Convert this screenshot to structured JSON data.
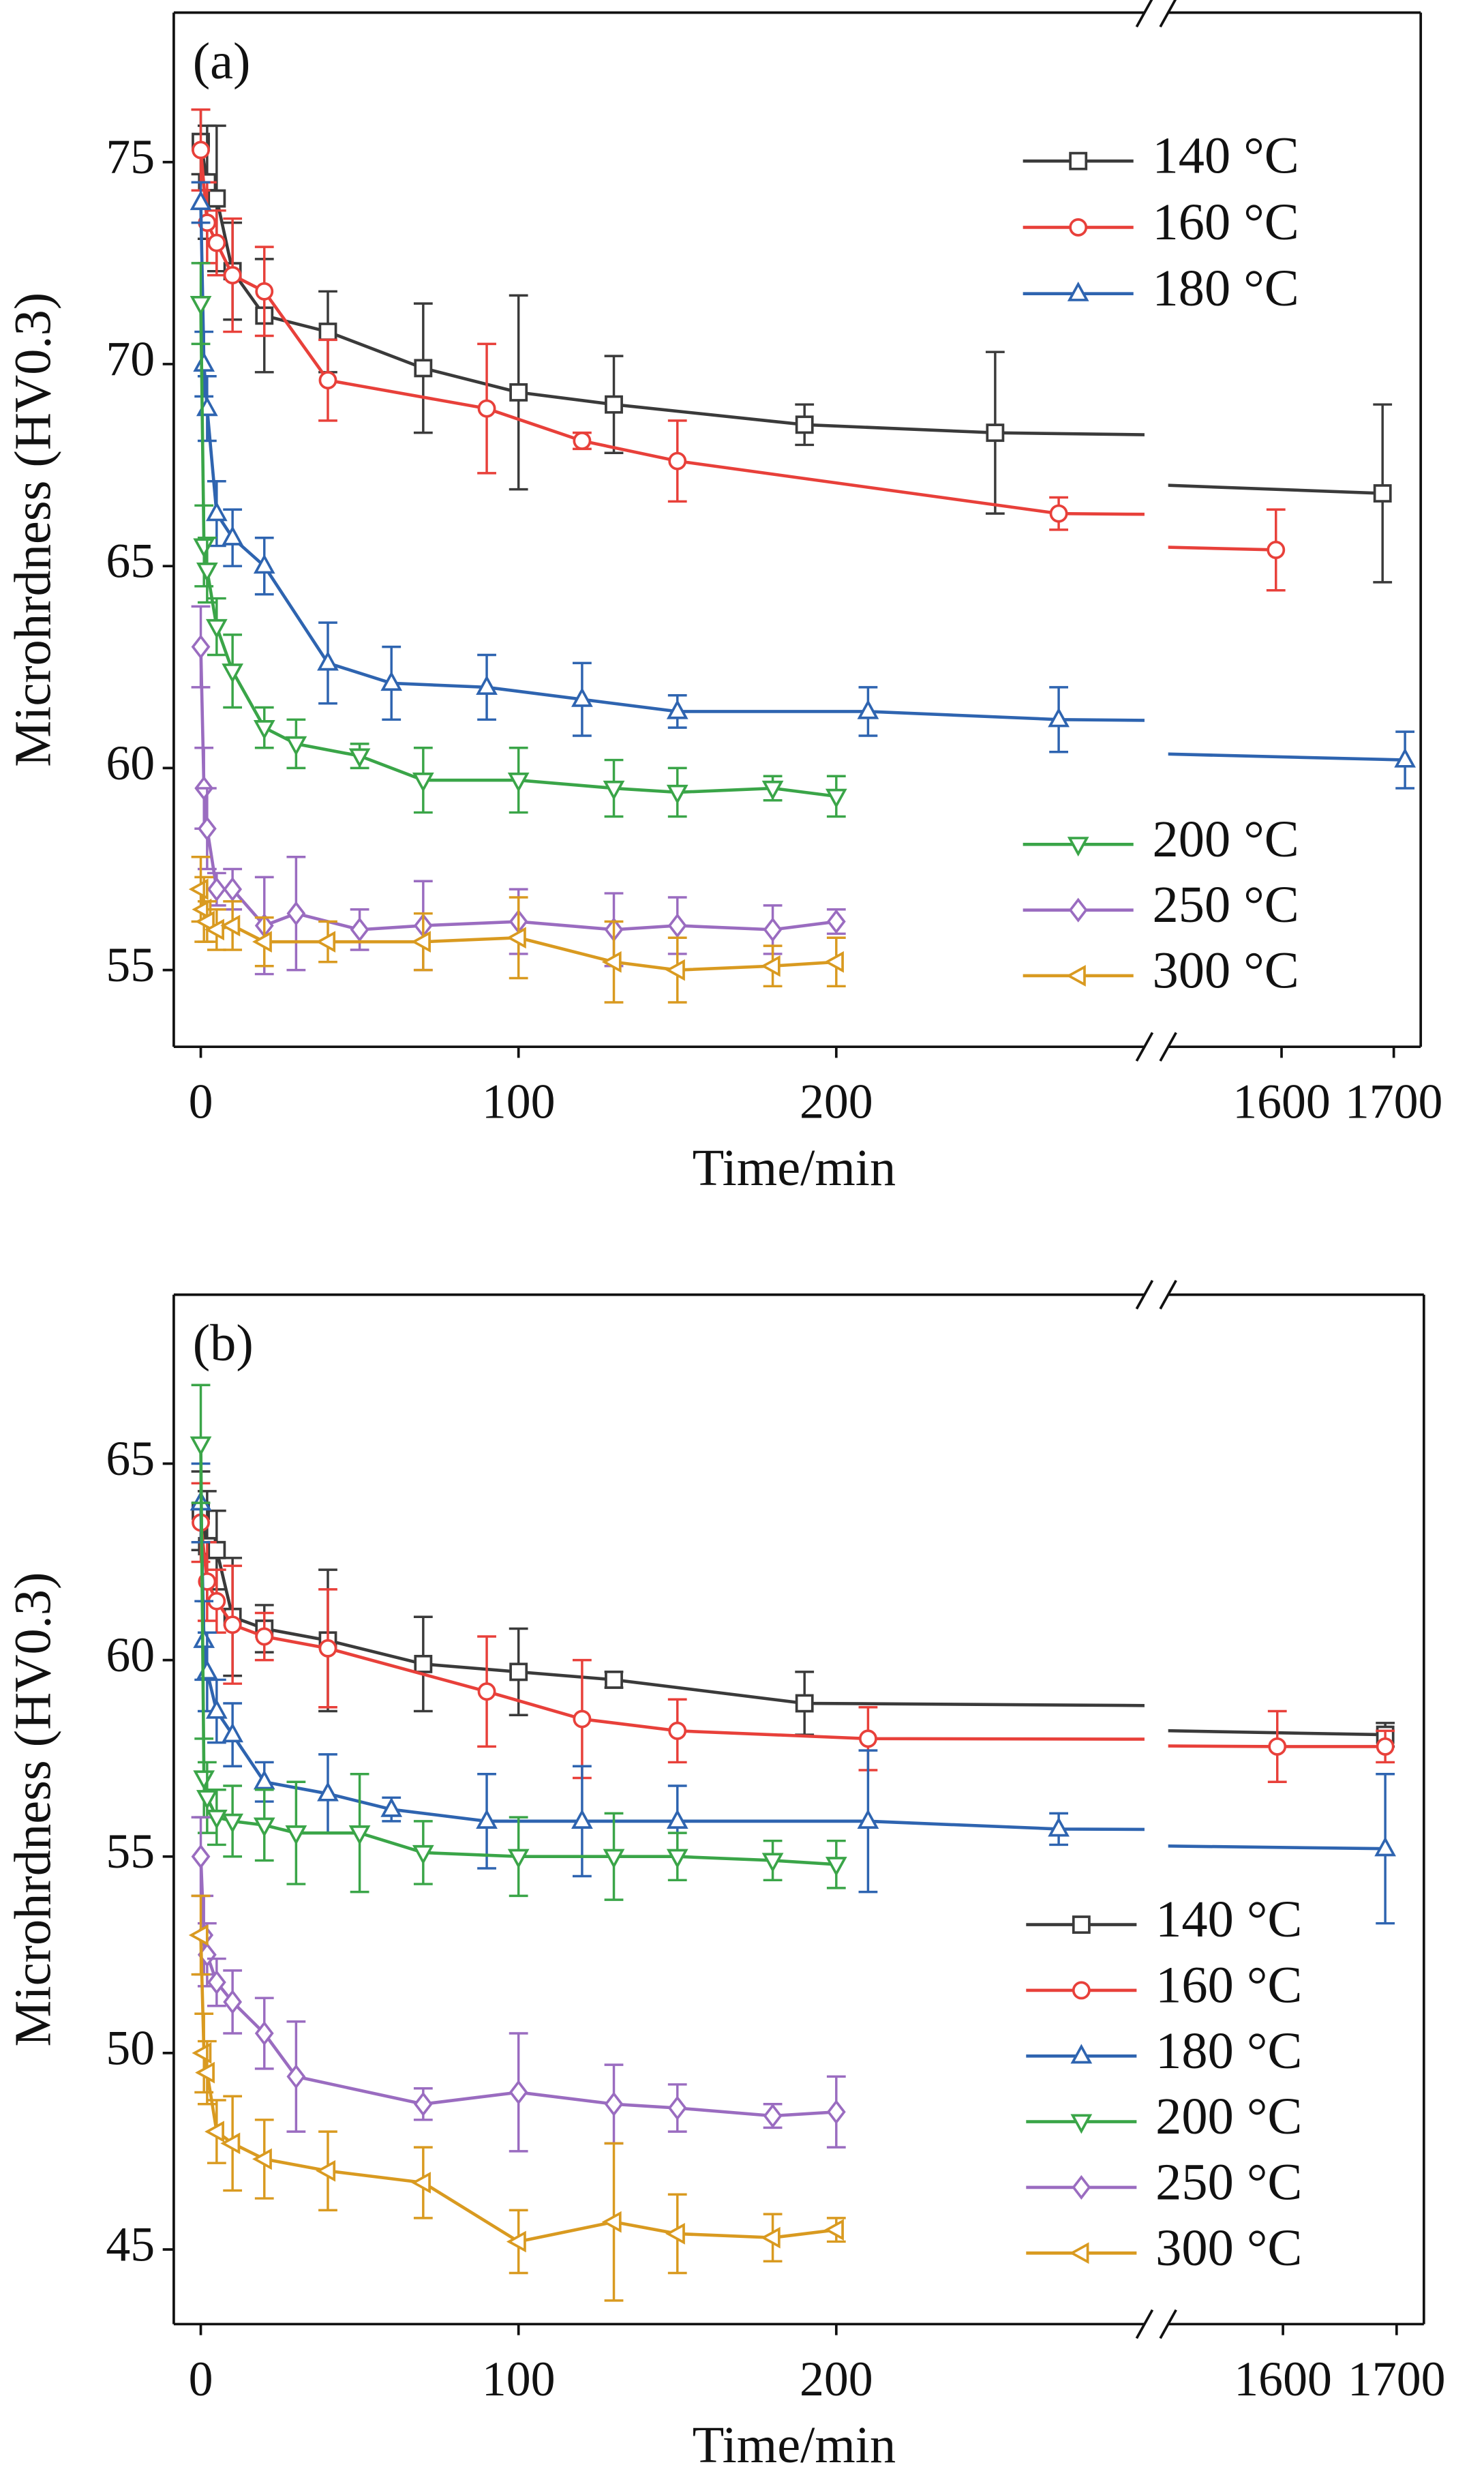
{
  "chart_data": [
    {
      "type": "line",
      "panel_label": "(a)",
      "xlabel": "Time/min",
      "ylabel": "Microhrdness (HV0.3)",
      "xlim": [
        -8.5,
        1724
      ],
      "x_break": [
        297,
        1499
      ],
      "ylim": [
        53.1,
        78.7
      ],
      "xticks": [
        0,
        100,
        200,
        1600,
        1700
      ],
      "yticks": [
        55,
        60,
        65,
        70,
        75
      ],
      "series": [
        {
          "name": "140 °C",
          "color": "#3a3a3a",
          "marker": "square",
          "legend": "upper right",
          "x": [
            0,
            2,
            5,
            10,
            20,
            40,
            70,
            100,
            130,
            190,
            250,
            1690
          ],
          "values": [
            75.5,
            74.5,
            74.1,
            72.3,
            71.2,
            70.8,
            69.9,
            69.3,
            69.0,
            68.5,
            68.3,
            66.8
          ],
          "errors": [
            0.8,
            1.4,
            1.8,
            1.2,
            1.4,
            1,
            1.6,
            2.4,
            1.2,
            0.5,
            2,
            2.2
          ]
        },
        {
          "name": "160 °C",
          "color": "#e8403a",
          "marker": "circle",
          "legend": "upper right",
          "x": [
            0,
            2,
            5,
            10,
            20,
            40,
            90,
            120,
            150,
            270,
            1595
          ],
          "values": [
            75.3,
            73.5,
            73.0,
            72.2,
            71.8,
            69.6,
            68.9,
            68.1,
            67.6,
            66.3,
            65.4
          ],
          "errors": [
            1,
            1,
            0.8,
            1.4,
            1.1,
            1,
            1.6,
            0.2,
            1,
            0.4,
            1
          ]
        },
        {
          "name": "180 °C",
          "color": "#2e64b0",
          "marker": "triangle-up",
          "legend": "upper right",
          "x": [
            0,
            1,
            2,
            5,
            10,
            20,
            40,
            60,
            90,
            120,
            150,
            210,
            270,
            1710
          ],
          "values": [
            74.0,
            70.0,
            68.9,
            66.3,
            65.7,
            65.0,
            62.6,
            62.1,
            62.0,
            61.7,
            61.4,
            61.4,
            61.2,
            60.2
          ],
          "errors": [
            0.5,
            0.8,
            0.8,
            0.8,
            0.7,
            0.7,
            1,
            0.9,
            0.8,
            0.9,
            0.4,
            0.6,
            0.8,
            0.7
          ]
        },
        {
          "name": "200 °C",
          "color": "#3aa548",
          "marker": "triangle-down",
          "legend": "lower right",
          "x": [
            0,
            1,
            2,
            5,
            10,
            20,
            30,
            50,
            70,
            100,
            130,
            150,
            180,
            200
          ],
          "values": [
            71.5,
            65.5,
            64.9,
            63.5,
            62.4,
            61.0,
            60.6,
            60.3,
            59.7,
            59.7,
            59.5,
            59.4,
            59.5,
            59.3
          ],
          "errors": [
            1,
            1,
            0.8,
            0.7,
            0.9,
            0.5,
            0.6,
            0.3,
            0.8,
            0.8,
            0.7,
            0.6,
            0.3,
            0.5
          ]
        },
        {
          "name": "250 °C",
          "color": "#9a6cc0",
          "marker": "diamond",
          "legend": "lower right",
          "x": [
            0,
            1,
            2,
            5,
            10,
            20,
            30,
            50,
            70,
            100,
            130,
            150,
            180,
            200
          ],
          "values": [
            63.0,
            59.5,
            58.5,
            57.0,
            57.0,
            56.1,
            56.4,
            56.0,
            56.1,
            56.2,
            56.0,
            56.1,
            56.0,
            56.2
          ],
          "errors": [
            1,
            1,
            1,
            0.4,
            0.5,
            1.2,
            1.4,
            0.5,
            1.1,
            0.8,
            0.9,
            0.7,
            0.6,
            0.3
          ]
        },
        {
          "name": "300 °C",
          "color": "#d99a20",
          "marker": "triangle-left",
          "legend": "lower right",
          "x": [
            0,
            1,
            2,
            5,
            10,
            20,
            40,
            70,
            100,
            130,
            150,
            180,
            200
          ],
          "values": [
            57.0,
            56.5,
            56.2,
            56.0,
            56.1,
            55.7,
            55.7,
            55.7,
            55.8,
            55.2,
            55.0,
            55.1,
            55.2
          ],
          "errors": [
            0.8,
            0.8,
            0.5,
            0.5,
            0.6,
            0.6,
            0.5,
            0.7,
            1,
            1,
            0.8,
            0.5,
            0.6
          ]
        }
      ]
    },
    {
      "type": "line",
      "panel_label": "(b)",
      "xlabel": "Time/min",
      "ylabel": "Microhrdness (HV0.3)",
      "xlim": [
        -8.5,
        1724
      ],
      "x_break": [
        297,
        1499
      ],
      "ylim": [
        43.1,
        69.3
      ],
      "xticks": [
        0,
        100,
        200,
        1600,
        1700
      ],
      "yticks": [
        45,
        50,
        55,
        60,
        65
      ],
      "series": [
        {
          "name": "140 °C",
          "color": "#3a3a3a",
          "marker": "square",
          "legend": "lower right",
          "x": [
            0,
            2,
            5,
            10,
            20,
            40,
            70,
            100,
            130,
            190,
            1690
          ],
          "values": [
            63.8,
            62.9,
            62.8,
            61.1,
            60.8,
            60.5,
            59.9,
            59.7,
            59.5,
            58.9,
            58.1
          ],
          "errors": [
            1,
            1.4,
            1,
            1.5,
            0.6,
            1.8,
            1.2,
            1.1,
            0.2,
            0.8,
            0.3
          ]
        },
        {
          "name": "160 °C",
          "color": "#e8403a",
          "marker": "circle",
          "legend": "lower right",
          "x": [
            0,
            2,
            5,
            10,
            20,
            40,
            90,
            120,
            150,
            210,
            1595,
            1690
          ],
          "values": [
            63.5,
            62.0,
            61.5,
            60.9,
            60.6,
            60.3,
            59.2,
            58.5,
            58.2,
            58.0,
            57.8,
            57.8
          ],
          "errors": [
            1,
            1,
            0.8,
            1.5,
            0.6,
            1.5,
            1.4,
            1.5,
            0.8,
            0.8,
            0.9,
            0.4
          ]
        },
        {
          "name": "180 °C",
          "color": "#2e64b0",
          "marker": "triangle-up",
          "legend": "lower right",
          "x": [
            0,
            1,
            2,
            5,
            10,
            20,
            40,
            60,
            90,
            120,
            150,
            210,
            270,
            1690
          ],
          "values": [
            64.0,
            60.5,
            59.7,
            58.7,
            58.1,
            56.9,
            56.6,
            56.2,
            55.9,
            55.9,
            55.9,
            55.9,
            55.7,
            55.2
          ],
          "errors": [
            1,
            1,
            1,
            0.8,
            0.8,
            0.5,
            1,
            0.3,
            1.2,
            1.4,
            0.9,
            1.8,
            0.4,
            1.9
          ]
        },
        {
          "name": "200 °C",
          "color": "#3aa548",
          "marker": "triangle-down",
          "legend": "lower right",
          "x": [
            0,
            1,
            2,
            5,
            10,
            20,
            30,
            50,
            70,
            100,
            130,
            150,
            180,
            200
          ],
          "values": [
            65.5,
            57.0,
            56.5,
            56.0,
            55.9,
            55.8,
            55.6,
            55.6,
            55.1,
            55.0,
            55.0,
            55.0,
            54.9,
            54.8
          ],
          "errors": [
            1.5,
            1,
            0.9,
            0.7,
            0.9,
            0.9,
            1.3,
            1.5,
            0.8,
            1,
            1.1,
            0.6,
            0.5,
            0.6
          ]
        },
        {
          "name": "250 °C",
          "color": "#9a6cc0",
          "marker": "diamond",
          "legend": "lower right",
          "x": [
            0,
            1,
            2,
            5,
            10,
            20,
            30,
            70,
            100,
            130,
            150,
            180,
            200
          ],
          "values": [
            55.0,
            53.0,
            52.5,
            51.8,
            51.3,
            50.5,
            49.4,
            48.7,
            49.0,
            48.7,
            48.6,
            48.4,
            48.5
          ],
          "errors": [
            1,
            1,
            0.8,
            0.6,
            0.8,
            0.9,
            1.4,
            0.4,
            1.5,
            1,
            0.6,
            0.3,
            0.9
          ]
        },
        {
          "name": "300 °C",
          "color": "#d99a20",
          "marker": "triangle-left",
          "legend": "lower right",
          "x": [
            0,
            1,
            2,
            5,
            10,
            20,
            40,
            70,
            100,
            130,
            150,
            180,
            200
          ],
          "values": [
            53.0,
            50.0,
            49.5,
            48.0,
            47.7,
            47.3,
            47.0,
            46.7,
            45.2,
            45.7,
            45.4,
            45.3,
            45.5
          ],
          "errors": [
            1,
            1,
            0.8,
            0.8,
            1.2,
            1,
            1,
            0.9,
            0.8,
            2,
            1,
            0.6,
            0.3
          ]
        }
      ]
    }
  ]
}
